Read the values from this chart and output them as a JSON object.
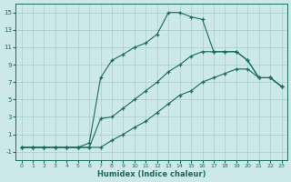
{
  "xlabel": "Humidex (Indice chaleur)",
  "bg_color": "#cce8e8",
  "line_color": "#1a6b5a",
  "grid_color": "#aacccc",
  "xlim": [
    -0.5,
    23.5
  ],
  "ylim": [
    -2,
    16
  ],
  "xticks": [
    0,
    1,
    2,
    3,
    4,
    5,
    6,
    7,
    8,
    9,
    10,
    11,
    12,
    13,
    14,
    15,
    16,
    17,
    18,
    19,
    20,
    21,
    22,
    23
  ],
  "yticks": [
    -1,
    1,
    3,
    5,
    7,
    9,
    11,
    13,
    15
  ],
  "line1_x": [
    0,
    1,
    2,
    3,
    4,
    5,
    6,
    7,
    8,
    9,
    10,
    11,
    12,
    13,
    14,
    15,
    16,
    17,
    18,
    19,
    20,
    21,
    22,
    23
  ],
  "line1_y": [
    -0.5,
    -0.5,
    -0.5,
    -0.5,
    -0.5,
    -0.5,
    0.0,
    7.5,
    9.5,
    10.2,
    11.0,
    11.5,
    12.5,
    15.0,
    15.0,
    14.5,
    14.2,
    10.5,
    10.5,
    10.5,
    9.5,
    7.5,
    7.5,
    6.5
  ],
  "line2_x": [
    0,
    1,
    2,
    3,
    4,
    5,
    6,
    7,
    8,
    9,
    10,
    11,
    12,
    13,
    14,
    15,
    16,
    17,
    18,
    19,
    20,
    21,
    22,
    23
  ],
  "line2_y": [
    -0.5,
    -0.5,
    -0.5,
    -0.5,
    -0.5,
    -0.5,
    -0.5,
    2.8,
    3.0,
    4.0,
    5.0,
    6.0,
    7.0,
    8.2,
    9.0,
    10.0,
    10.5,
    10.5,
    10.5,
    10.5,
    9.5,
    7.5,
    7.5,
    6.5
  ],
  "line3_x": [
    0,
    1,
    2,
    3,
    4,
    5,
    6,
    7,
    8,
    9,
    10,
    11,
    12,
    13,
    14,
    15,
    16,
    17,
    18,
    19,
    20,
    21,
    22,
    23
  ],
  "line3_y": [
    -0.5,
    -0.5,
    -0.5,
    -0.5,
    -0.5,
    -0.5,
    -0.5,
    -0.5,
    0.3,
    1.0,
    1.8,
    2.5,
    3.5,
    4.5,
    5.5,
    6.0,
    7.0,
    7.5,
    8.0,
    8.5,
    8.5,
    7.5,
    7.5,
    6.5
  ]
}
